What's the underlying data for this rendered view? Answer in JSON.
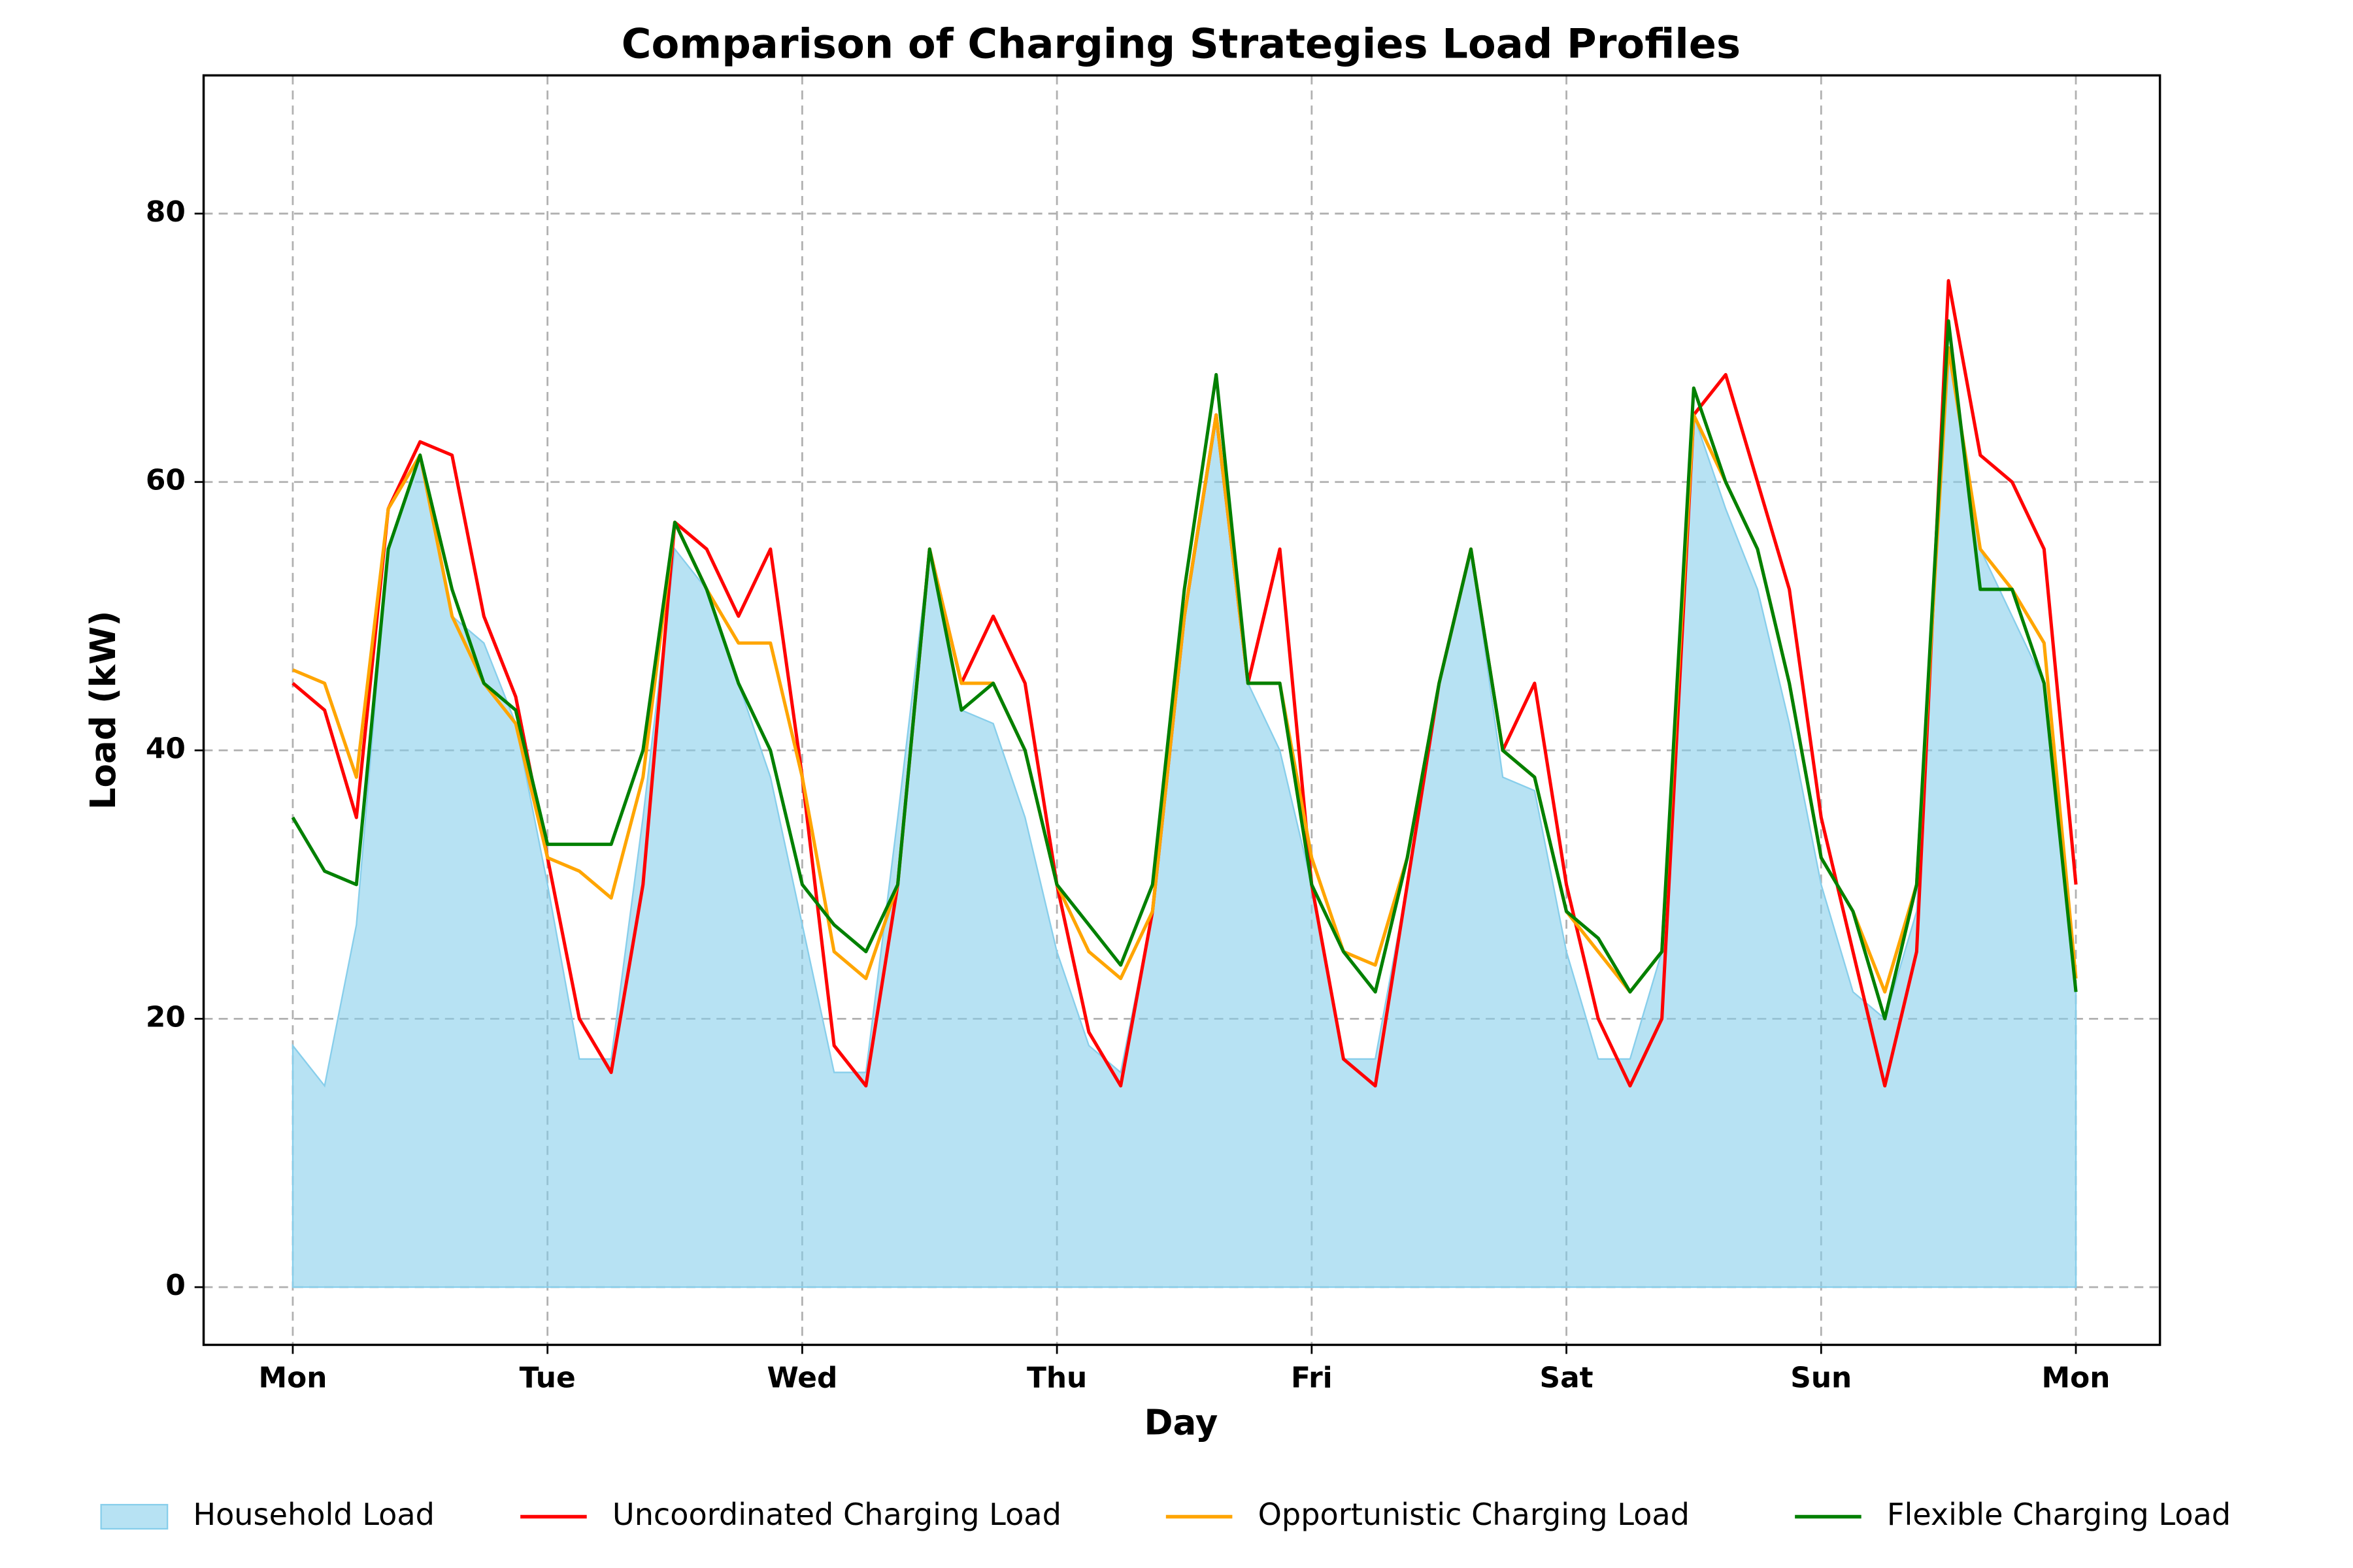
{
  "chart_data": {
    "type": "line",
    "title": "Comparison of Charging Strategies Load Profiles",
    "xlabel": "Day",
    "ylabel": "Load (kW)",
    "x": [
      0,
      0.125,
      0.25,
      0.375,
      0.5,
      0.625,
      0.75,
      0.875,
      1,
      1.125,
      1.25,
      1.375,
      1.5,
      1.625,
      1.75,
      1.875,
      2,
      2.125,
      2.25,
      2.375,
      2.5,
      2.625,
      2.75,
      2.875,
      3,
      3.125,
      3.25,
      3.375,
      3.5,
      3.625,
      3.75,
      3.875,
      4,
      4.125,
      4.25,
      4.375,
      4.5,
      4.625,
      4.75,
      4.875,
      5,
      5.125,
      5.25,
      5.375,
      5.5,
      5.625,
      5.75,
      5.875,
      6,
      6.125,
      6.25,
      6.375,
      6.5,
      6.625,
      6.75,
      6.875,
      7
    ],
    "series": [
      {
        "name": "Household Load",
        "color": "#87ceeb",
        "fill": true,
        "values": [
          18,
          15,
          27,
          55,
          62,
          50,
          48,
          42,
          30,
          17,
          17,
          35,
          55,
          52,
          45,
          38,
          27,
          16,
          16,
          35,
          55,
          43,
          42,
          35,
          25,
          18,
          16,
          28,
          50,
          65,
          45,
          40,
          30,
          17,
          17,
          30,
          45,
          55,
          38,
          37,
          25,
          17,
          17,
          25,
          65,
          58,
          52,
          42,
          30,
          22,
          20,
          28,
          70,
          55,
          50,
          45,
          22
        ]
      },
      {
        "name": "Uncoordinated Charging Load",
        "color": "#ff0000",
        "values": [
          45,
          43,
          35,
          58,
          63,
          62,
          50,
          44,
          32,
          20,
          16,
          30,
          57,
          55,
          50,
          55,
          38,
          18,
          15,
          30,
          55,
          45,
          50,
          45,
          30,
          19,
          15,
          28,
          50,
          65,
          45,
          55,
          30,
          17,
          15,
          30,
          45,
          55,
          40,
          45,
          30,
          20,
          15,
          20,
          65,
          68,
          60,
          52,
          35,
          25,
          15,
          25,
          75,
          62,
          60,
          55,
          30
        ]
      },
      {
        "name": "Opportunistic Charging Load",
        "color": "#ffa500",
        "values": [
          46,
          45,
          38,
          58,
          62,
          50,
          45,
          42,
          32,
          31,
          29,
          38,
          57,
          52,
          48,
          48,
          38,
          25,
          23,
          30,
          55,
          45,
          45,
          40,
          30,
          25,
          23,
          28,
          50,
          65,
          45,
          45,
          32,
          25,
          24,
          32,
          45,
          55,
          40,
          38,
          28,
          25,
          22,
          25,
          65,
          60,
          55,
          45,
          32,
          28,
          22,
          30,
          70,
          55,
          52,
          48,
          23
        ]
      },
      {
        "name": "Flexible Charging Load",
        "color": "#008000",
        "values": [
          35,
          31,
          30,
          55,
          62,
          52,
          45,
          43,
          33,
          33,
          33,
          40,
          57,
          52,
          45,
          40,
          30,
          27,
          25,
          30,
          55,
          43,
          45,
          40,
          30,
          27,
          24,
          30,
          52,
          68,
          45,
          45,
          30,
          25,
          22,
          32,
          45,
          55,
          40,
          38,
          28,
          26,
          22,
          25,
          67,
          60,
          55,
          45,
          32,
          28,
          20,
          30,
          72,
          52,
          52,
          45,
          22
        ]
      }
    ],
    "xlim": [
      -0.35,
      7.33
    ],
    "xticks": [
      {
        "value": 0,
        "label": "Mon"
      },
      {
        "value": 1,
        "label": "Tue"
      },
      {
        "value": 2,
        "label": "Wed"
      },
      {
        "value": 3,
        "label": "Thu"
      },
      {
        "value": 4,
        "label": "Fri"
      },
      {
        "value": 5,
        "label": "Sat"
      },
      {
        "value": 6,
        "label": "Sun"
      },
      {
        "value": 7,
        "label": "Mon"
      }
    ],
    "ylim": [
      -4.3,
      90.3
    ],
    "yticks": [
      0,
      20,
      40,
      60,
      80
    ],
    "grid": true,
    "legend": "bottom"
  }
}
